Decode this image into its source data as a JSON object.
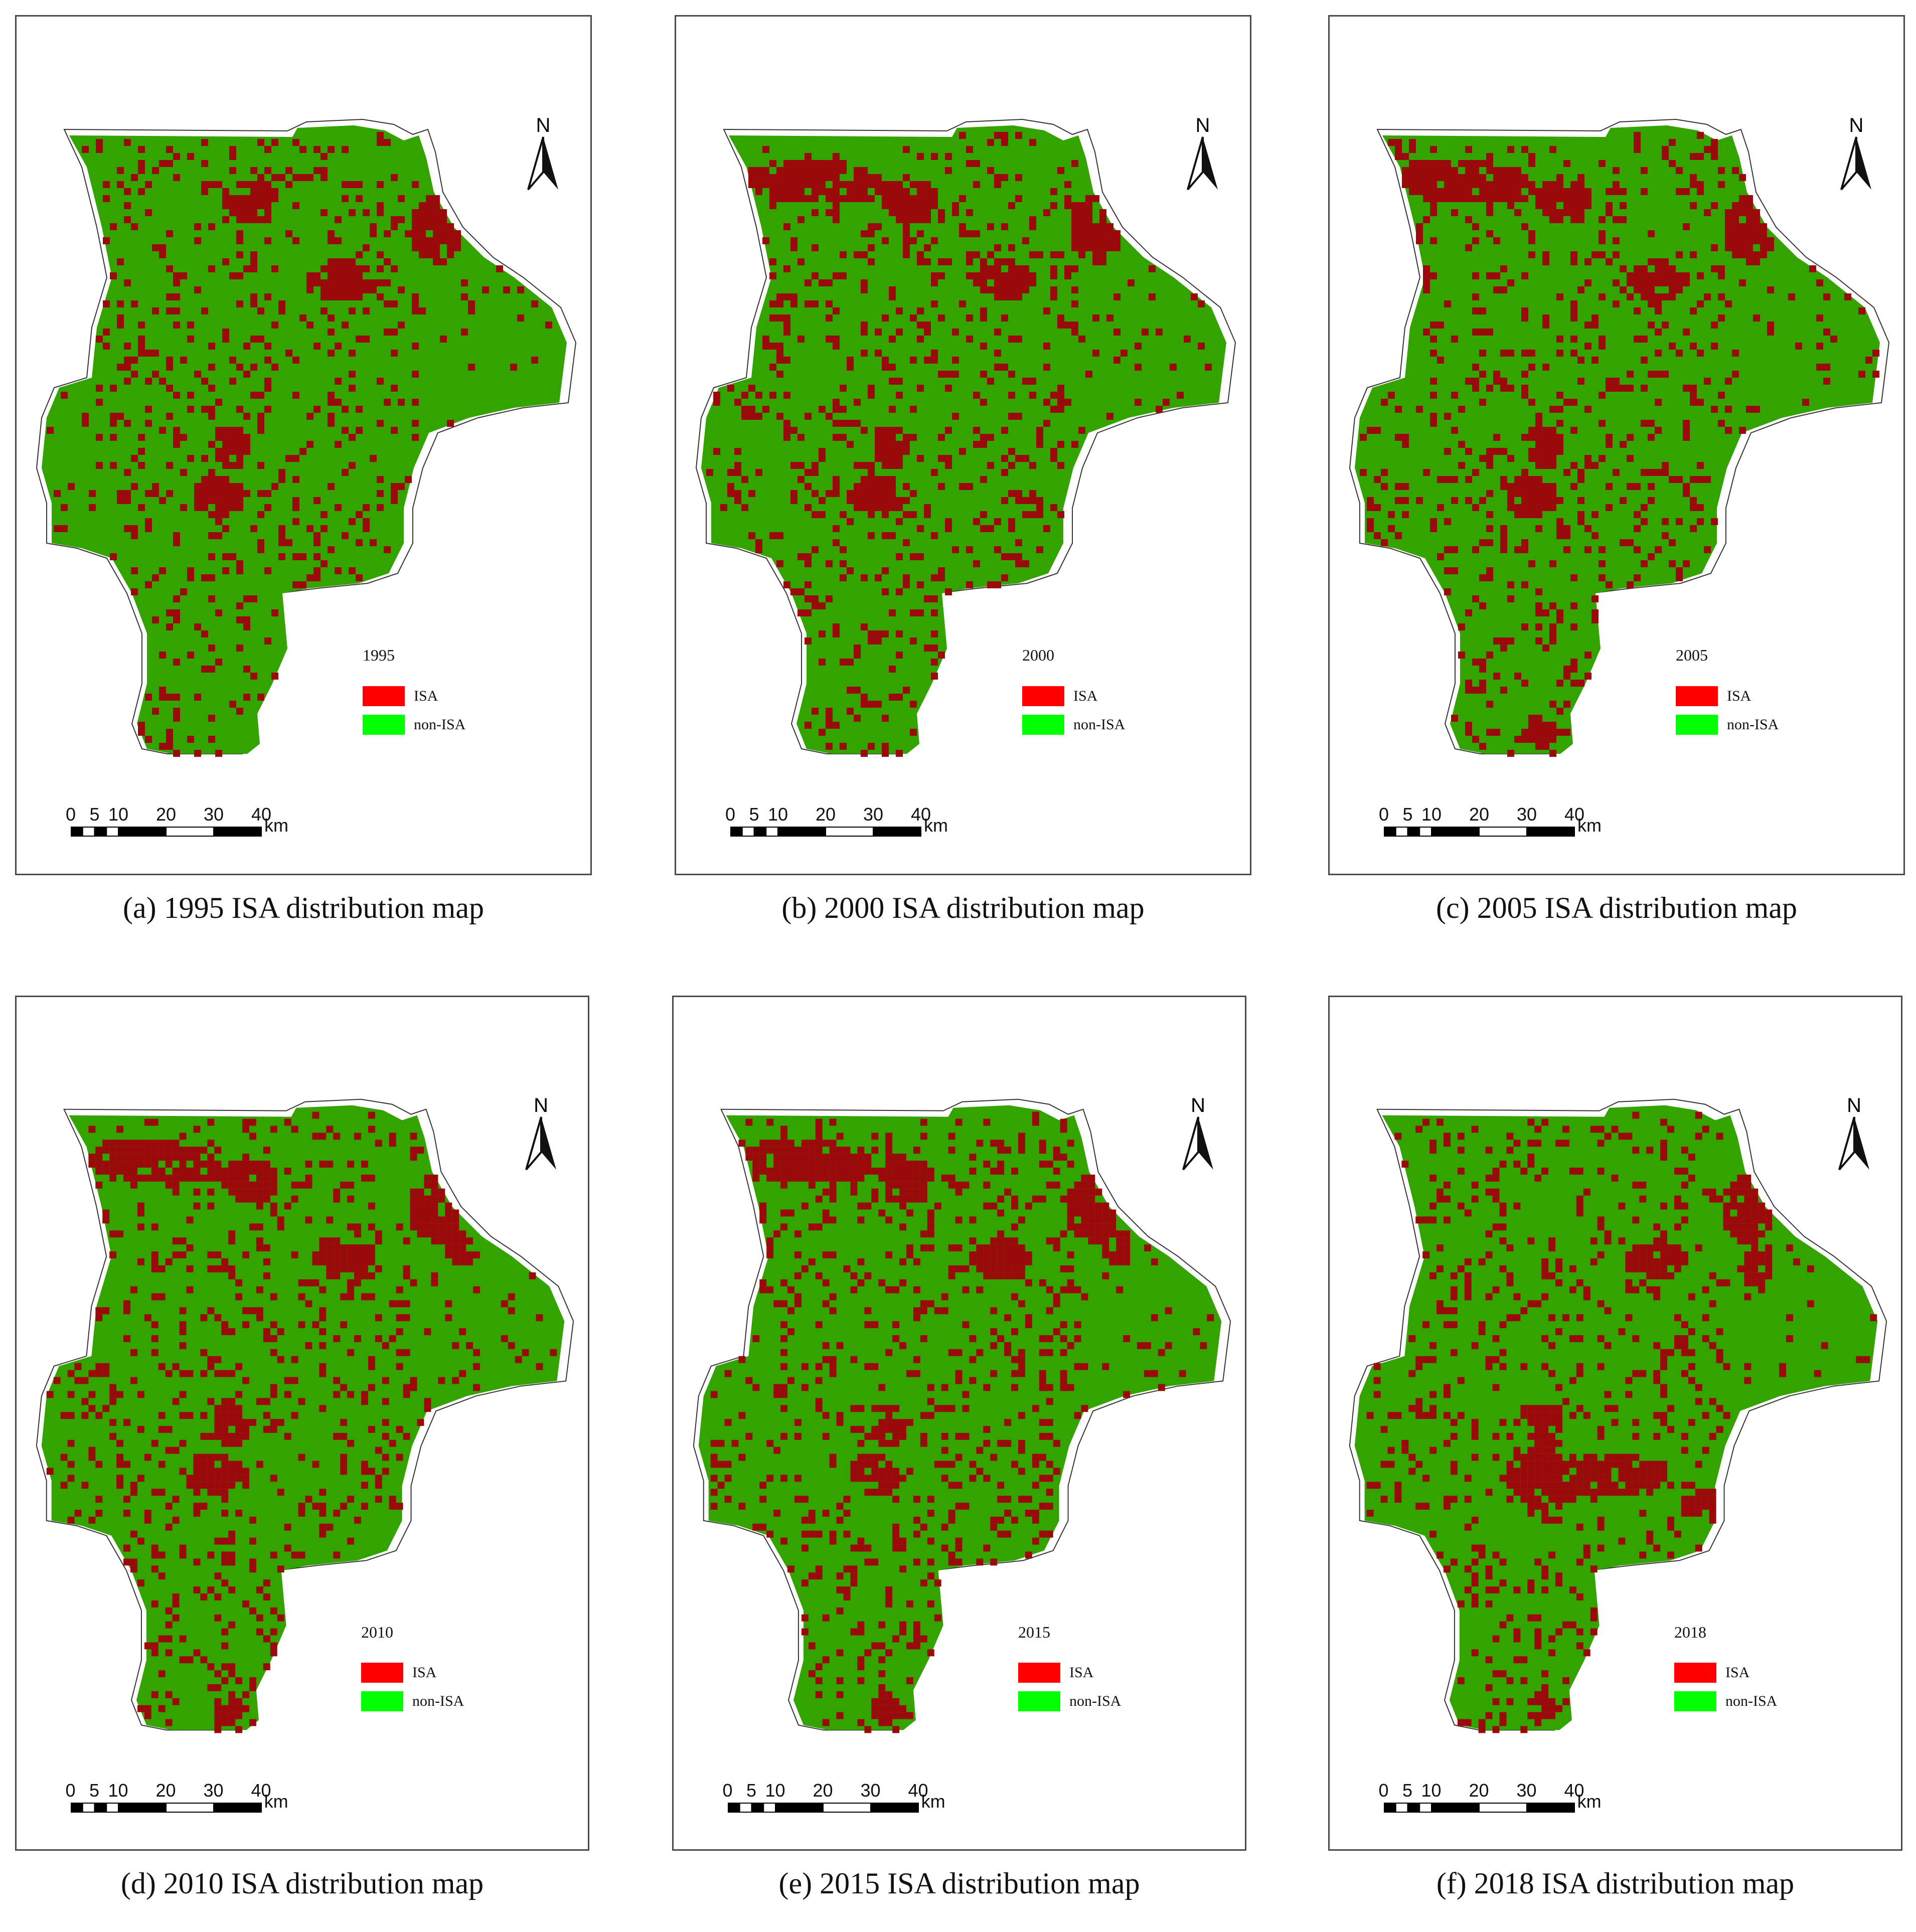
{
  "colors": {
    "isa_map": "#9b0a0a",
    "non_isa_map": "#33a300",
    "isa_legend": "#ff0000",
    "non_isa_legend": "#00ff00",
    "outline": "#333333"
  },
  "legend_items": [
    "ISA",
    "non-ISA"
  ],
  "north_label": "N",
  "scale": {
    "ticks": [
      "0",
      "5",
      "10",
      "20",
      "30",
      "40"
    ],
    "unit": "km"
  },
  "panels": [
    {
      "year": "1995",
      "caption": "(a) 1995 ISA distribution map",
      "isa_density": 0.14,
      "clusters": [
        "north-center",
        "north-east",
        "central-east",
        "city-center",
        "city-core"
      ]
    },
    {
      "year": "2000",
      "caption": "(b) 2000 ISA distribution map",
      "isa_density": 0.15,
      "clusters": [
        "north-west",
        "north-center",
        "north-east",
        "central-east",
        "city-center",
        "city-core"
      ]
    },
    {
      "year": "2005",
      "caption": "(c) 2005 ISA distribution map",
      "isa_density": 0.16,
      "clusters": [
        "north-west",
        "north-center",
        "north-east",
        "central-east",
        "city-center",
        "city-core",
        "south-tip"
      ]
    },
    {
      "year": "2010",
      "caption": "(d) 2010 ISA distribution map",
      "isa_density": 0.17,
      "clusters": [
        "north-west",
        "north-center",
        "north-east",
        "north-east-2",
        "central-east",
        "city-center",
        "city-core",
        "south-tip"
      ]
    },
    {
      "year": "2015",
      "caption": "(e) 2015 ISA distribution map",
      "isa_density": 0.17,
      "clusters": [
        "north-west",
        "north-center",
        "north-east",
        "north-east-2",
        "central-east",
        "city-center",
        "city-core",
        "south-tip"
      ]
    },
    {
      "year": "2018",
      "caption": "(f) 2018 ISA distribution map",
      "isa_density": 0.15,
      "clusters": [
        "north-east",
        "central-east",
        "city-center",
        "city-core",
        "city-east",
        "south-tip",
        "east-patch"
      ]
    }
  ]
}
